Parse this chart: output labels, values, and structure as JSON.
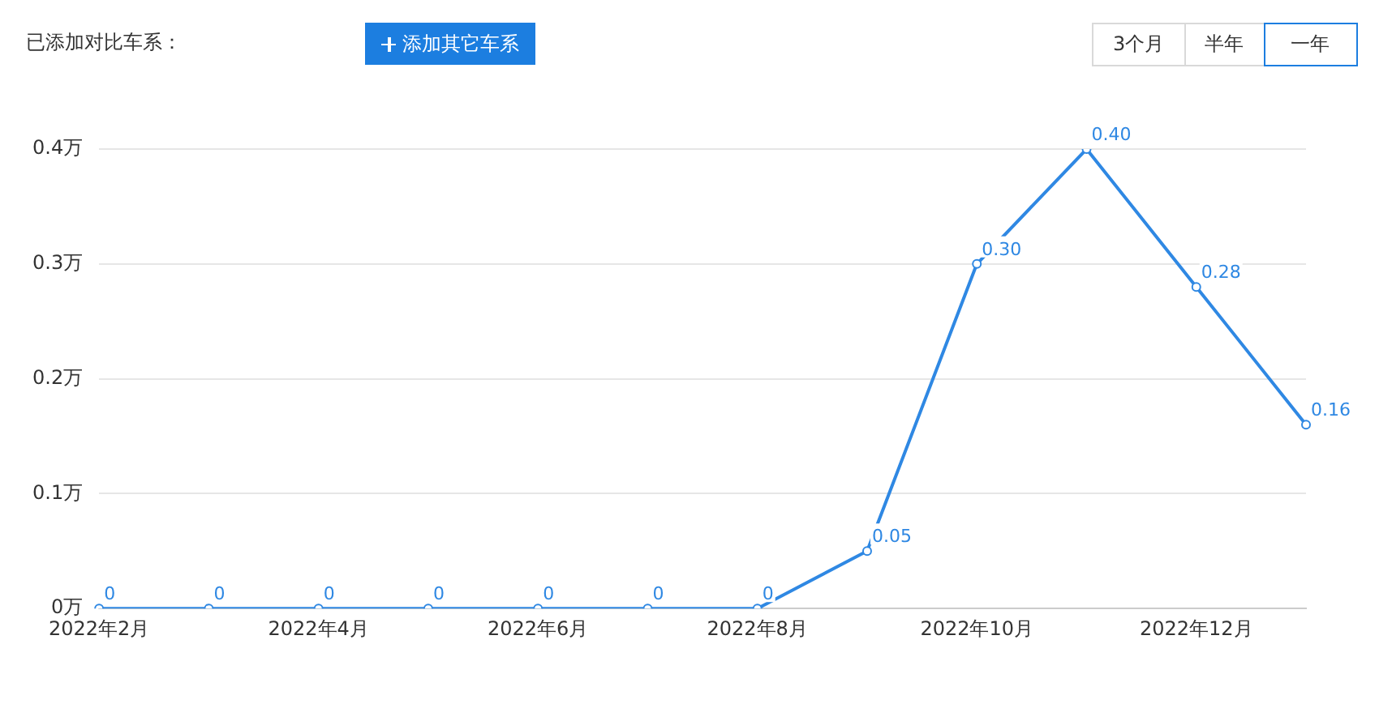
{
  "chart_data": {
    "type": "line",
    "annotations": [
      "已添加对比车系：",
      "添加其它车系",
      "3个月",
      "半年",
      "一年"
    ],
    "categories": [
      "2022年2月",
      null,
      "2022年4月",
      null,
      "2022年6月",
      null,
      "2022年8月",
      null,
      "2022年10月",
      null,
      "2022年12月",
      null
    ],
    "series": [
      {
        "color": "#2f88e3",
        "values": [
          0,
          0,
          0,
          0,
          0,
          0,
          0,
          0.05,
          0.3,
          0.4,
          0.28,
          0.16
        ],
        "value_labels": [
          "0",
          "0",
          "0",
          "0",
          "0",
          "0",
          "0",
          "0.05",
          "0.30",
          "0.40",
          "0.28",
          "0.16"
        ]
      }
    ],
    "ylim": [
      0,
      0.4
    ],
    "yticks": [
      {
        "value": 0,
        "label": "0万"
      },
      {
        "value": 0.1,
        "label": "0.1万"
      },
      {
        "value": 0.2,
        "label": "0.2万"
      },
      {
        "value": 0.3,
        "label": "0.3万"
      },
      {
        "value": 0.4,
        "label": "0.4万"
      }
    ],
    "grid": "y",
    "legend": false,
    "marker": "circle",
    "line_style": "solid"
  }
}
